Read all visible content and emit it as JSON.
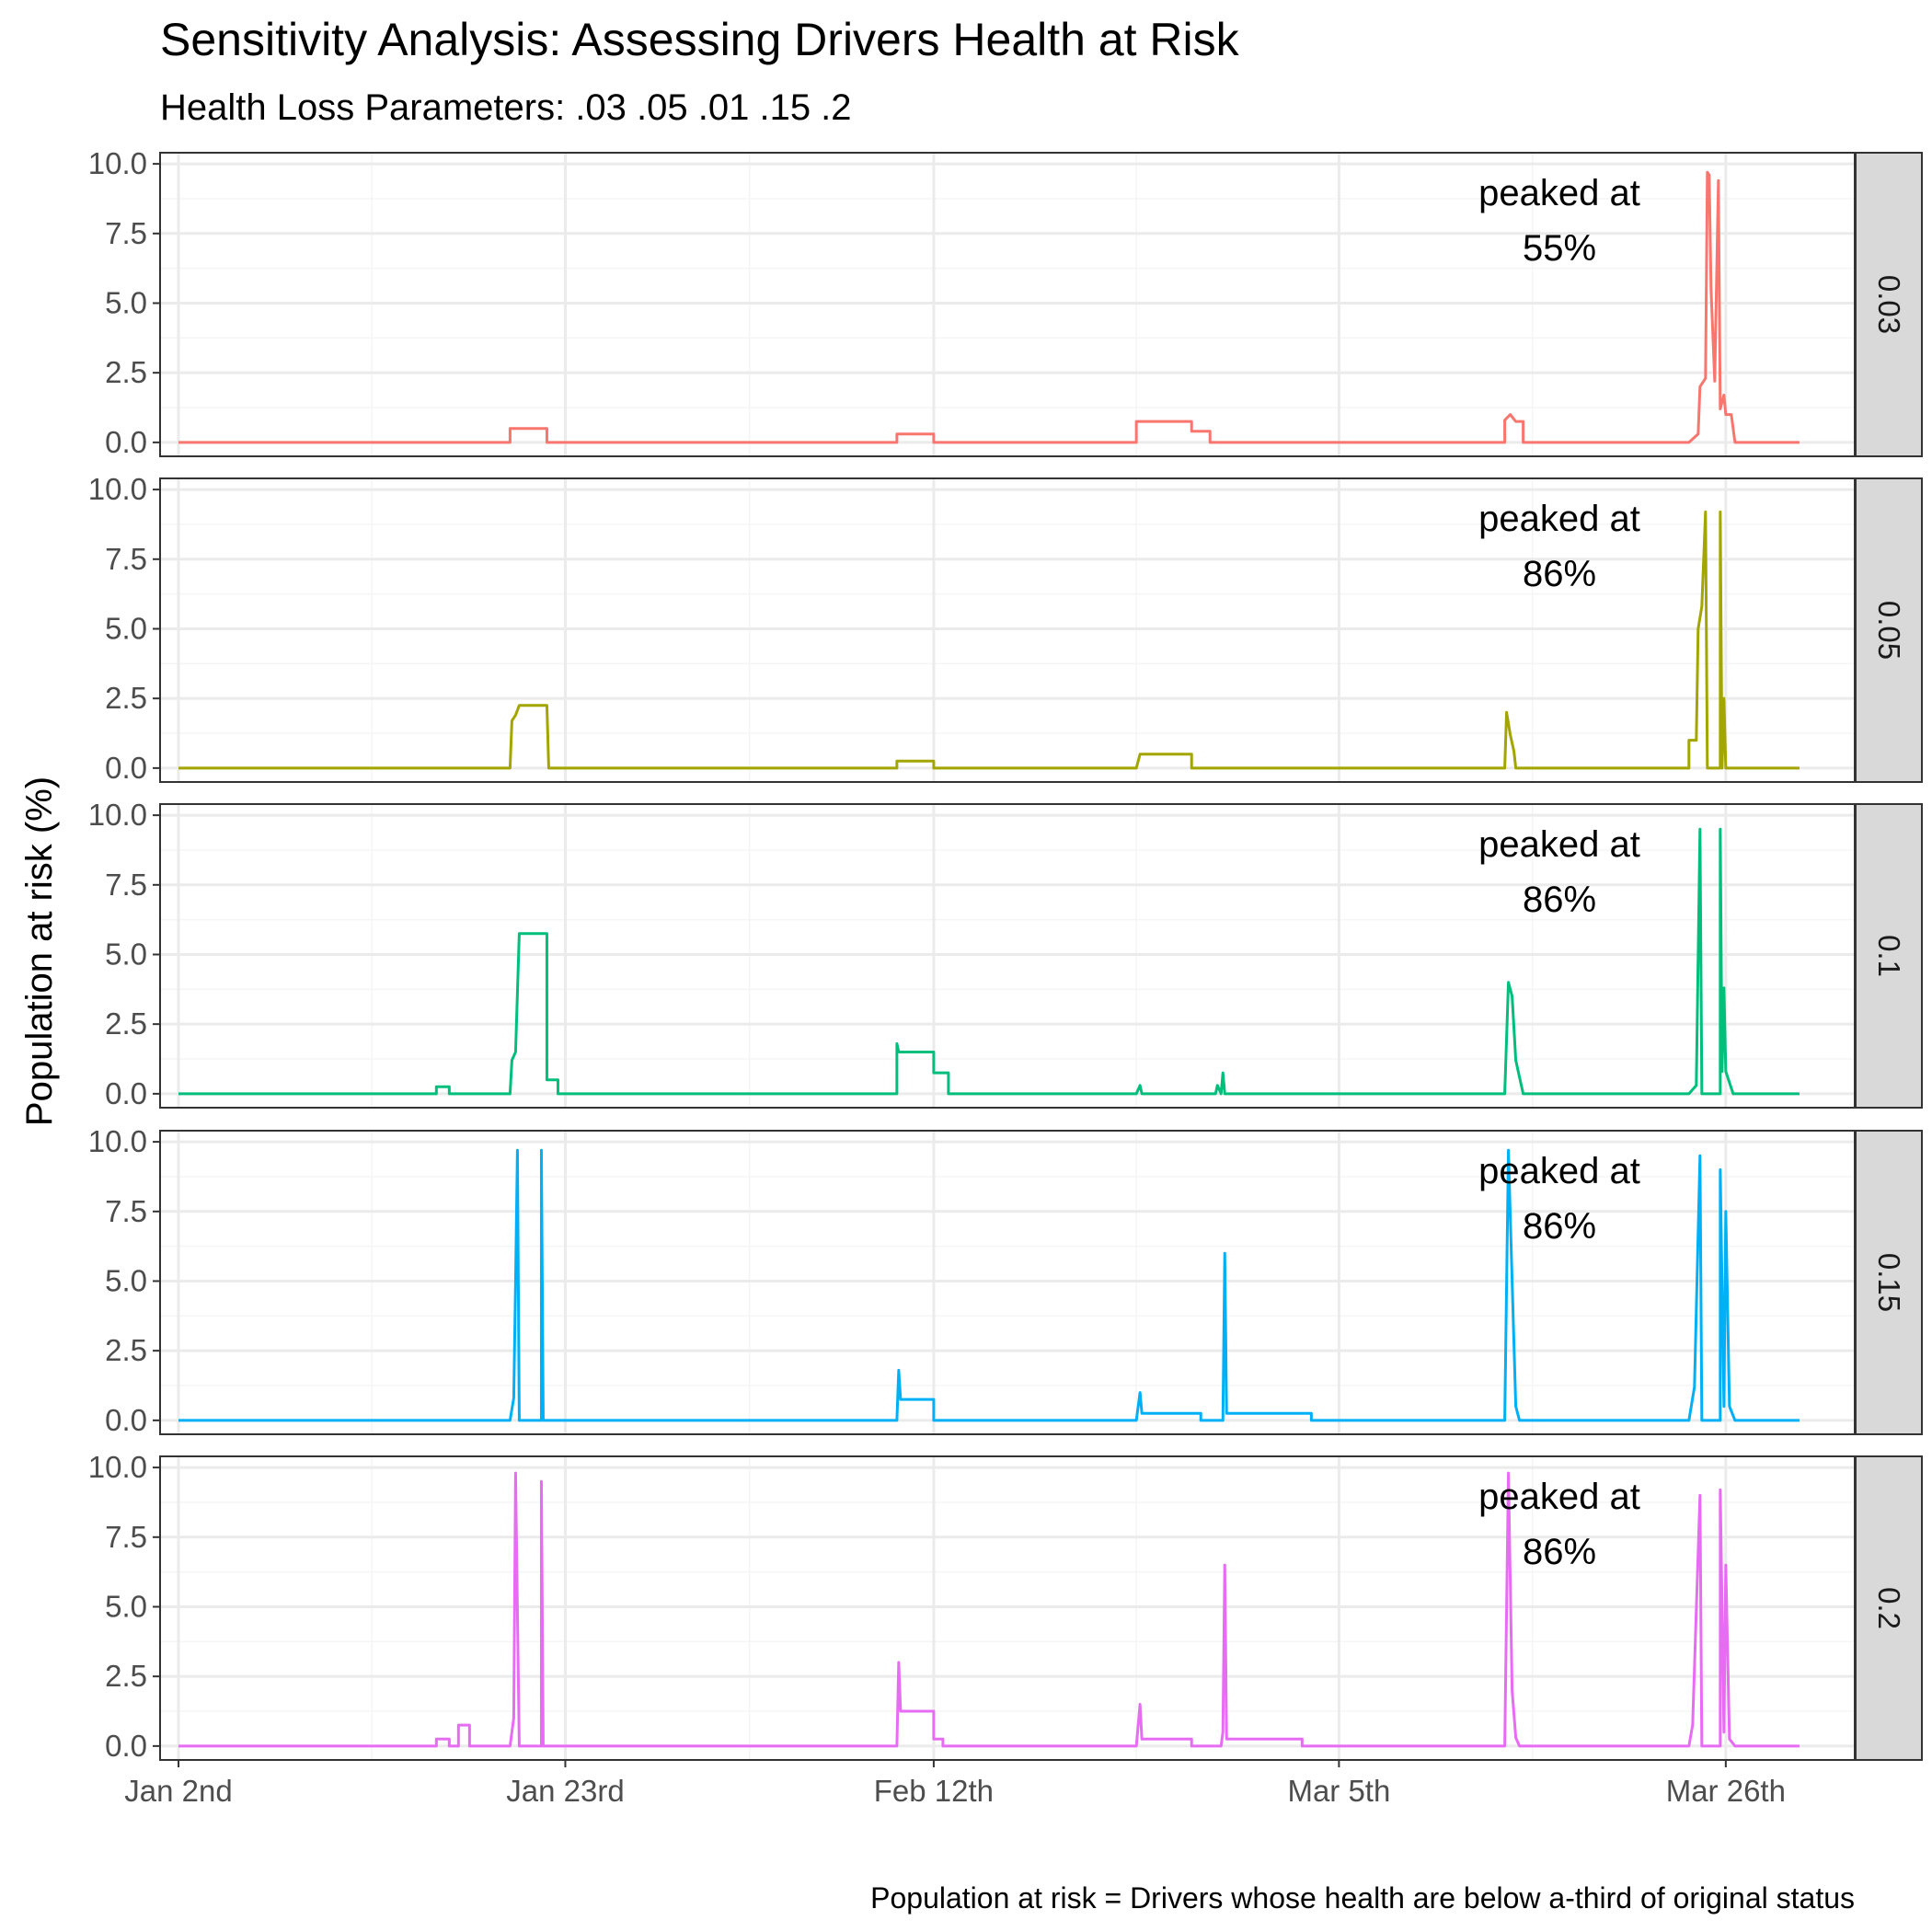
{
  "chart_data": {
    "type": "line",
    "title": "Sensitivity Analysis: Assessing Drivers Health at Risk",
    "subtitle": "Health Loss Parameters: .03 .05 .01 .15 .2",
    "ylabel": "Population at risk (%)",
    "caption": "Population at risk = Drivers whose health are below a-third of original status",
    "x_ticks": [
      "Jan 2nd",
      "Jan 23rd",
      "Feb 12th",
      "Mar 5th",
      "Mar 26th"
    ],
    "xlim": [
      "2020-01-01",
      "2020-04-02"
    ],
    "y_ticks": [
      "0.0",
      "2.5",
      "5.0",
      "7.5",
      "10.0"
    ],
    "ylim": [
      -0.5,
      10.4
    ],
    "grid": true,
    "facets": [
      {
        "label": "0.03",
        "color": "#F8766D",
        "annotation_line1": "peaked at",
        "annotation_line2": "55%",
        "points": [
          [
            "2020-01-02",
            0
          ],
          [
            "2020-01-20",
            0
          ],
          [
            "2020-01-20",
            0.5
          ],
          [
            "2020-01-21",
            0.5
          ],
          [
            "2020-01-22",
            0.5
          ],
          [
            "2020-01-22",
            0
          ],
          [
            "2020-02-10",
            0
          ],
          [
            "2020-02-10",
            0.3
          ],
          [
            "2020-02-12",
            0.3
          ],
          [
            "2020-02-12",
            0
          ],
          [
            "2020-02-23",
            0
          ],
          [
            "2020-02-23",
            0.75
          ],
          [
            "2020-02-26",
            0.75
          ],
          [
            "2020-02-26",
            0.4
          ],
          [
            "2020-02-27",
            0.4
          ],
          [
            "2020-02-27",
            0
          ],
          [
            "2020-03-14",
            0
          ],
          [
            "2020-03-14",
            0.8
          ],
          [
            "2020-03-14.3",
            1.0
          ],
          [
            "2020-03-14.6",
            0.75
          ],
          [
            "2020-03-15",
            0.75
          ],
          [
            "2020-03-15",
            0
          ],
          [
            "2020-03-24",
            0
          ],
          [
            "2020-03-24.5",
            0.3
          ],
          [
            "2020-03-24.6",
            2.0
          ],
          [
            "2020-03-24.9",
            2.3
          ],
          [
            "2020-03-25.0",
            9.7
          ],
          [
            "2020-03-25.1",
            9.6
          ],
          [
            "2020-03-25.2",
            5.5
          ],
          [
            "2020-03-25.4",
            2.2
          ],
          [
            "2020-03-25.6",
            9.4
          ],
          [
            "2020-03-25.7",
            1.2
          ],
          [
            "2020-03-25.9",
            1.7
          ],
          [
            "2020-03-26.0",
            1.0
          ],
          [
            "2020-03-26.3",
            1.0
          ],
          [
            "2020-03-26.5",
            0
          ],
          [
            "2020-03-30",
            0
          ]
        ]
      },
      {
        "label": "0.05",
        "color": "#A3A500",
        "annotation_line1": "peaked at",
        "annotation_line2": "86%",
        "points": [
          [
            "2020-01-02",
            0
          ],
          [
            "2020-01-20",
            0
          ],
          [
            "2020-01-20.1",
            1.7
          ],
          [
            "2020-01-20.3",
            1.9
          ],
          [
            "2020-01-20.5",
            2.25
          ],
          [
            "2020-01-22",
            2.25
          ],
          [
            "2020-01-22.1",
            0
          ],
          [
            "2020-02-10",
            0
          ],
          [
            "2020-02-10",
            0.25
          ],
          [
            "2020-02-12",
            0.25
          ],
          [
            "2020-02-12",
            0
          ],
          [
            "2020-02-23",
            0
          ],
          [
            "2020-02-23.2",
            0.5
          ],
          [
            "2020-02-26",
            0.5
          ],
          [
            "2020-02-26",
            0
          ],
          [
            "2020-03-14",
            0
          ],
          [
            "2020-03-14.1",
            2.0
          ],
          [
            "2020-03-14.3",
            1.2
          ],
          [
            "2020-03-14.5",
            0.6
          ],
          [
            "2020-03-14.6",
            0
          ],
          [
            "2020-03-24",
            0
          ],
          [
            "2020-03-24",
            1.0
          ],
          [
            "2020-03-24.4",
            1.0
          ],
          [
            "2020-03-24.5",
            5.0
          ],
          [
            "2020-03-24.7",
            5.8
          ],
          [
            "2020-03-24.9",
            9.2
          ],
          [
            "2020-03-25.0",
            0
          ],
          [
            "2020-03-25.7",
            0
          ],
          [
            "2020-03-25.7",
            9.2
          ],
          [
            "2020-03-25.8",
            0
          ],
          [
            "2020-03-25.9",
            2.5
          ],
          [
            "2020-03-26.0",
            0
          ],
          [
            "2020-03-30",
            0
          ]
        ]
      },
      {
        "label": "0.1",
        "color": "#00BF7D",
        "annotation_line1": "peaked at",
        "annotation_line2": "86%",
        "points": [
          [
            "2020-01-02",
            0
          ],
          [
            "2020-01-16",
            0
          ],
          [
            "2020-01-16",
            0.25
          ],
          [
            "2020-01-16.7",
            0.25
          ],
          [
            "2020-01-16.7",
            0
          ],
          [
            "2020-01-20",
            0
          ],
          [
            "2020-01-20.1",
            1.2
          ],
          [
            "2020-01-20.3",
            1.5
          ],
          [
            "2020-01-20.5",
            5.75
          ],
          [
            "2020-01-22",
            5.75
          ],
          [
            "2020-01-22",
            0.5
          ],
          [
            "2020-01-22.6",
            0.5
          ],
          [
            "2020-01-22.6",
            0
          ],
          [
            "2020-02-10",
            0
          ],
          [
            "2020-02-10",
            1.8
          ],
          [
            "2020-02-10.1",
            1.5
          ],
          [
            "2020-02-12",
            1.5
          ],
          [
            "2020-02-12",
            0.75
          ],
          [
            "2020-02-12.8",
            0.75
          ],
          [
            "2020-02-12.8",
            0
          ],
          [
            "2020-02-23",
            0
          ],
          [
            "2020-02-23.2",
            0.3
          ],
          [
            "2020-02-23.3",
            0
          ],
          [
            "2020-02-27.3",
            0
          ],
          [
            "2020-02-27.4",
            0.3
          ],
          [
            "2020-02-27.6",
            0
          ],
          [
            "2020-02-27.7",
            0.75
          ],
          [
            "2020-02-27.8",
            0
          ],
          [
            "2020-03-14",
            0
          ],
          [
            "2020-03-14.2",
            4.0
          ],
          [
            "2020-03-14.4",
            3.5
          ],
          [
            "2020-03-14.6",
            1.2
          ],
          [
            "2020-03-15",
            0
          ],
          [
            "2020-03-24",
            0
          ],
          [
            "2020-03-24.4",
            0.3
          ],
          [
            "2020-03-24.6",
            9.5
          ],
          [
            "2020-03-24.7",
            0
          ],
          [
            "2020-03-25.7",
            0
          ],
          [
            "2020-03-25.7",
            9.5
          ],
          [
            "2020-03-25.8",
            0.8
          ],
          [
            "2020-03-25.9",
            3.8
          ],
          [
            "2020-03-26.0",
            0.8
          ],
          [
            "2020-03-26.4",
            0
          ],
          [
            "2020-03-30",
            0
          ]
        ]
      },
      {
        "label": "0.15",
        "color": "#00B0F6",
        "annotation_line1": "peaked at",
        "annotation_line2": "86%",
        "points": [
          [
            "2020-01-02",
            0
          ],
          [
            "2020-01-20",
            0
          ],
          [
            "2020-01-20.2",
            0.8
          ],
          [
            "2020-01-20.3",
            5.0
          ],
          [
            "2020-01-20.4",
            9.7
          ],
          [
            "2020-01-20.5",
            0
          ],
          [
            "2020-01-21.7",
            0
          ],
          [
            "2020-01-21.7",
            9.7
          ],
          [
            "2020-01-21.8",
            0
          ],
          [
            "2020-02-10",
            0
          ],
          [
            "2020-02-10.1",
            1.8
          ],
          [
            "2020-02-10.2",
            0.75
          ],
          [
            "2020-02-12",
            0.75
          ],
          [
            "2020-02-12",
            0
          ],
          [
            "2020-02-23",
            0
          ],
          [
            "2020-02-23.2",
            1.0
          ],
          [
            "2020-02-23.3",
            0.25
          ],
          [
            "2020-02-26.5",
            0.25
          ],
          [
            "2020-02-26.5",
            0
          ],
          [
            "2020-02-27.7",
            0
          ],
          [
            "2020-02-27.8",
            6.0
          ],
          [
            "2020-02-27.9",
            0.25
          ],
          [
            "2020-03-03.5",
            0.25
          ],
          [
            "2020-03-03.5",
            0
          ],
          [
            "2020-03-14",
            0
          ],
          [
            "2020-03-14.2",
            9.7
          ],
          [
            "2020-03-14.4",
            5.0
          ],
          [
            "2020-03-14.6",
            0.5
          ],
          [
            "2020-03-14.8",
            0
          ],
          [
            "2020-03-24",
            0
          ],
          [
            "2020-03-24.3",
            1.2
          ],
          [
            "2020-03-24.6",
            9.5
          ],
          [
            "2020-03-24.7",
            0
          ],
          [
            "2020-03-25.7",
            0
          ],
          [
            "2020-03-25.7",
            9.0
          ],
          [
            "2020-03-25.9",
            0.5
          ],
          [
            "2020-03-26.0",
            7.5
          ],
          [
            "2020-03-26.2",
            0.5
          ],
          [
            "2020-03-26.5",
            0
          ],
          [
            "2020-03-30",
            0
          ]
        ]
      },
      {
        "label": "0.2",
        "color": "#E76BF3",
        "annotation_line1": "peaked at",
        "annotation_line2": "86%",
        "points": [
          [
            "2020-01-02",
            0
          ],
          [
            "2020-01-16",
            0
          ],
          [
            "2020-01-16",
            0.25
          ],
          [
            "2020-01-16.7",
            0.25
          ],
          [
            "2020-01-16.7",
            0
          ],
          [
            "2020-01-17.2",
            0
          ],
          [
            "2020-01-17.2",
            0.75
          ],
          [
            "2020-01-17.8",
            0.75
          ],
          [
            "2020-01-17.8",
            0
          ],
          [
            "2020-01-20",
            0
          ],
          [
            "2020-01-20.2",
            1.0
          ],
          [
            "2020-01-20.3",
            9.8
          ],
          [
            "2020-01-20.5",
            0
          ],
          [
            "2020-01-21.7",
            0
          ],
          [
            "2020-01-21.7",
            9.5
          ],
          [
            "2020-01-21.8",
            0
          ],
          [
            "2020-02-10",
            0
          ],
          [
            "2020-02-10.1",
            3.0
          ],
          [
            "2020-02-10.2",
            1.25
          ],
          [
            "2020-02-12",
            1.25
          ],
          [
            "2020-02-12",
            0.25
          ],
          [
            "2020-02-12.5",
            0.25
          ],
          [
            "2020-02-12.5",
            0
          ],
          [
            "2020-02-23",
            0
          ],
          [
            "2020-02-23.2",
            1.5
          ],
          [
            "2020-02-23.3",
            0.25
          ],
          [
            "2020-02-26",
            0.25
          ],
          [
            "2020-02-26",
            0
          ],
          [
            "2020-02-27.6",
            0
          ],
          [
            "2020-02-27.7",
            0.5
          ],
          [
            "2020-02-27.8",
            6.5
          ],
          [
            "2020-02-27.9",
            0.25
          ],
          [
            "2020-03-03",
            0.25
          ],
          [
            "2020-03-03",
            0
          ],
          [
            "2020-03-14",
            0
          ],
          [
            "2020-03-14.2",
            9.8
          ],
          [
            "2020-03-14.4",
            2.0
          ],
          [
            "2020-03-14.6",
            0.3
          ],
          [
            "2020-03-14.8",
            0
          ],
          [
            "2020-03-24",
            0
          ],
          [
            "2020-03-24.2",
            0.75
          ],
          [
            "2020-03-24.6",
            9.0
          ],
          [
            "2020-03-24.7",
            0
          ],
          [
            "2020-03-25.7",
            0
          ],
          [
            "2020-03-25.7",
            9.2
          ],
          [
            "2020-03-25.9",
            0.5
          ],
          [
            "2020-03-26.0",
            6.5
          ],
          [
            "2020-03-26.2",
            0.25
          ],
          [
            "2020-03-26.5",
            0
          ],
          [
            "2020-03-30",
            0
          ]
        ]
      }
    ]
  },
  "colors": {
    "panel_border": "#333333",
    "grid_major": "#ebebeb",
    "grid_minor": "#f5f5f5",
    "strip_fill": "#d9d9d9"
  }
}
